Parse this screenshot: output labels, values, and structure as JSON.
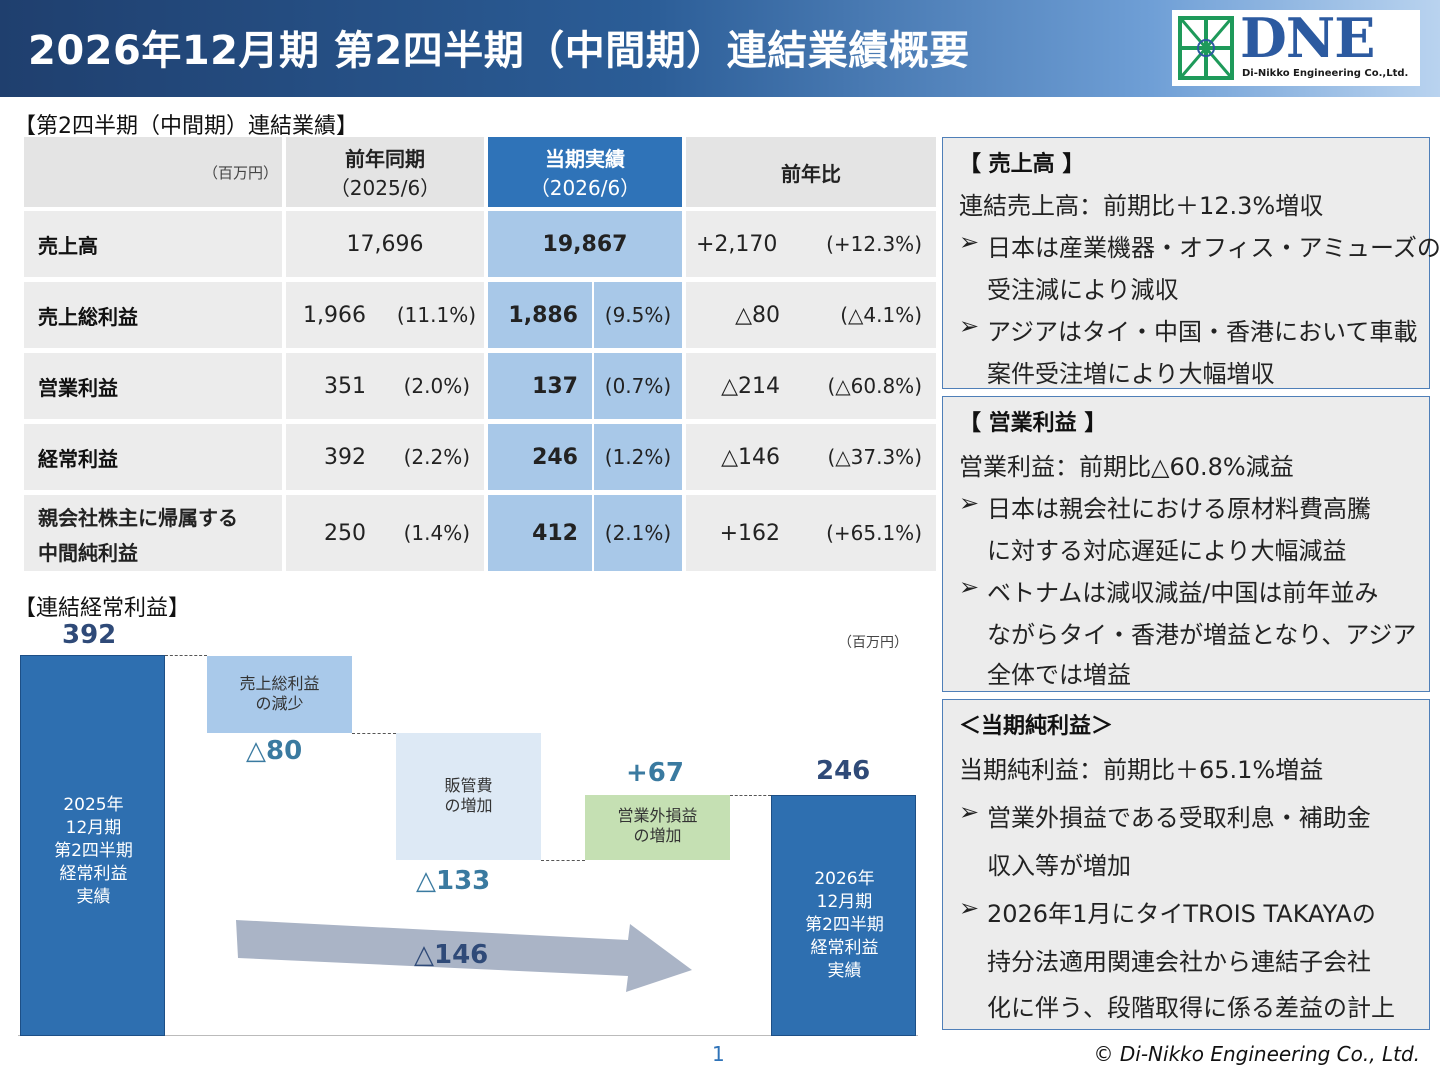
{
  "header": {
    "title": "2026年12月期 第2四半期（中間期）連結業績概要",
    "logo_text": "DNE",
    "logo_subtitle": "Di-Nikko Engineering Co.,Ltd."
  },
  "results_section": {
    "label": "【第2四半期（中間期）連結業績】",
    "unit": "（百万円）",
    "columns": [
      {
        "label": "前年同期",
        "sub": "（2025/6）"
      },
      {
        "label": "当期実績",
        "sub": "（2026/6）"
      },
      {
        "label": "前年比",
        "sub": ""
      }
    ],
    "rows": [
      {
        "name": "売上高",
        "prev": "17,696",
        "prev_pct": "",
        "cur": "19,867",
        "cur_pct": "",
        "diff": "+2,170",
        "diff_pct": "(+12.3%)"
      },
      {
        "name": "売上総利益",
        "prev": "1,966",
        "prev_pct": "(11.1%)",
        "cur": "1,886",
        "cur_pct": "(9.5%)",
        "diff": "△80",
        "diff_pct": "(△4.1%)"
      },
      {
        "name": "営業利益",
        "prev": "351",
        "prev_pct": "(2.0%)",
        "cur": "137",
        "cur_pct": "(0.7%)",
        "diff": "△214",
        "diff_pct": "(△60.8%)"
      },
      {
        "name": "経常利益",
        "prev": "392",
        "prev_pct": "(2.2%)",
        "cur": "246",
        "cur_pct": "(1.2%)",
        "diff": "△146",
        "diff_pct": "(△37.3%)"
      },
      {
        "name": "親会社株主に帰属する",
        "name2": "中間純利益",
        "prev": "250",
        "prev_pct": "(1.4%)",
        "cur": "412",
        "cur_pct": "(2.1%)",
        "diff": "+162",
        "diff_pct": "(+65.1%)"
      }
    ]
  },
  "waterfall": {
    "label": "【連結経常利益】",
    "unit": "（百万円）",
    "start": {
      "value_label": "392",
      "lines": [
        "2025年",
        "12月期",
        "第2四半期",
        "経常利益",
        "実績"
      ]
    },
    "steps": [
      {
        "lines": [
          "売上総利益",
          "の減少"
        ],
        "value_label": "△80"
      },
      {
        "lines": [
          "販管費",
          "の増加"
        ],
        "value_label": "△133"
      },
      {
        "lines": [
          "営業外損益",
          "の増加"
        ],
        "value_label": "+67"
      }
    ],
    "end": {
      "value_label": "246",
      "lines": [
        "2026年",
        "12月期",
        "第2四半期",
        "経常利益",
        "実績"
      ]
    },
    "arrow_label": "△146",
    "colors": {
      "total": "#2e6fb0",
      "decrease1": "#a9c9ea",
      "decrease2": "#dde9f5",
      "increase": "#c5e0b3",
      "arrow": "#aab4c6"
    }
  },
  "sales_box": {
    "head": "【 売上高 】",
    "summary": "連結売上高：前期比＋12.3%増収",
    "bullets": [
      [
        "日本は産業機器・オフィス・アミューズの",
        "受注減により減収"
      ],
      [
        "アジアはタイ・中国・香港において車載",
        "案件受注増により大幅増収"
      ]
    ]
  },
  "op_box": {
    "head": "【 営業利益 】",
    "summary": "営業利益：前期比△60.8%減益",
    "bullets": [
      [
        "日本は親会社における原材料費高騰",
        "に対する対応遅延により大幅減益"
      ],
      [
        "ベトナムは減収減益/中国は前年並み",
        "ながらタイ・香港が増益となり、アジア",
        "全体では増益"
      ]
    ]
  },
  "net_box": {
    "head": "＜当期純利益＞",
    "summary": "当期純利益：前期比＋65.1%増益",
    "bullets": [
      [
        "営業外損益である受取利息・補助金",
        "収入等が増加"
      ],
      [
        "2026年1月にタイTROIS TAKAYAの",
        "持分法適用関連会社から連結子会社",
        "化に伴う、段階取得に係る差益の計上"
      ]
    ]
  },
  "footer": {
    "page_number": "1",
    "copyright": "© Di-Nikko Engineering Co., Ltd."
  }
}
